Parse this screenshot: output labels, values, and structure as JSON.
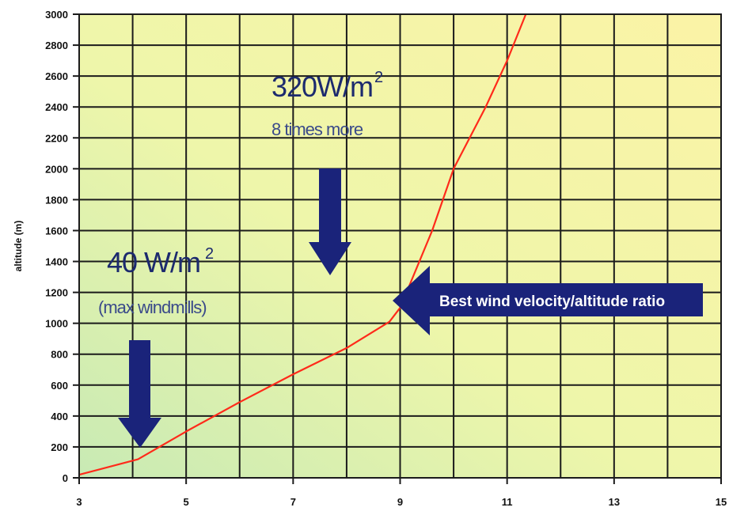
{
  "chart_data": {
    "type": "line",
    "title": "",
    "xlabel": "",
    "ylabel": "altitude (m)",
    "xlim": [
      3,
      15
    ],
    "ylim": [
      0,
      3000
    ],
    "x_ticks": [
      3,
      5,
      7,
      9,
      11,
      13,
      15
    ],
    "y_ticks": [
      0,
      200,
      400,
      600,
      800,
      1000,
      1200,
      1400,
      1600,
      1800,
      2000,
      2200,
      2400,
      2600,
      2800,
      3000
    ],
    "x_grid_step": 1,
    "grid": true,
    "background_gradient": [
      "#c8eab4",
      "#f4f7a8",
      "#f8f2a4"
    ],
    "series": [
      {
        "color": "#ff2a1a",
        "points": [
          [
            3.0,
            20
          ],
          [
            4.1,
            120
          ],
          [
            5.0,
            300
          ],
          [
            6.0,
            490
          ],
          [
            7.0,
            670
          ],
          [
            8.0,
            840
          ],
          [
            8.8,
            1010
          ],
          [
            9.0,
            1100
          ],
          [
            9.6,
            1600
          ],
          [
            10.0,
            2000
          ],
          [
            10.6,
            2400
          ],
          [
            11.0,
            2700
          ],
          [
            11.35,
            3000
          ]
        ]
      }
    ],
    "annotations": {
      "high_value": "320W/m",
      "high_sup": "2",
      "high_note": "8 times more",
      "low_value": "40 W/m",
      "low_sup": "2",
      "low_note": "(max windmills)",
      "banner": "Best wind velocity/altitude ratio",
      "arrow_color": "#1a237a"
    }
  }
}
